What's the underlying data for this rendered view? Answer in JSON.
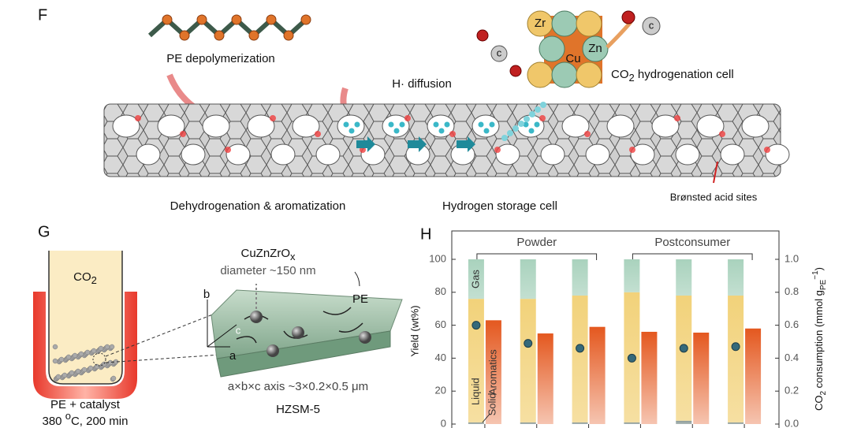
{
  "panel_f": {
    "label": "F",
    "pe_depolymerization": "PE depolymerization",
    "h_diffusion": "H· diffusion",
    "co2_cell": {
      "main": "CO",
      "sub": "2",
      "rest": " hydrogenation cell"
    },
    "atoms": [
      "Zr",
      "Zn",
      "Cu"
    ],
    "co_atom": "c",
    "dehydrogenation": "Dehydrogenation & aromatization",
    "storage": "Hydrogen storage cell",
    "bronsted": "Brønsted acid sites"
  },
  "panel_g": {
    "label": "G",
    "co2": {
      "main": "CO",
      "sub": "2"
    },
    "catalyst": {
      "main": "CuZnZrO",
      "sub": "x"
    },
    "diameter": "diameter ~150 nm",
    "pe": "PE",
    "axes": [
      "b",
      "c",
      "a"
    ],
    "dims": "a×b×c axis ~3×0.2×0.5 μm",
    "zeolite": "HZSM-5",
    "mix": "PE + catalyst",
    "conditions": {
      "pre": "380 ",
      "sup": "o",
      "post": "C, 200 min"
    }
  },
  "chart_data": {
    "type": "bar",
    "panel_label": "H",
    "categories": [
      null,
      null,
      null,
      null,
      null,
      null
    ],
    "groups": [
      "Powder",
      "Postconsumer"
    ],
    "ylabel": "Yield (wt%)",
    "y2label": {
      "main": "CO",
      "sub": "2",
      "mid": " consumption (mmol g",
      "sub2": "PE",
      "sup": "−1",
      "end": ")"
    },
    "series": [
      {
        "name": "Solid",
        "color": "#8a9a98",
        "stacked": true,
        "values": [
          1,
          1,
          1,
          1,
          2,
          1
        ]
      },
      {
        "name": "Liquid",
        "color": "#f2d27a",
        "stacked": true,
        "values": [
          75,
          75,
          77,
          79,
          76,
          77
        ]
      },
      {
        "name": "Gas",
        "color": "#a9d2bd",
        "stacked": true,
        "values": [
          24,
          24,
          22,
          20,
          22,
          22
        ]
      },
      {
        "name": "Aromatics",
        "color": "#e4581f",
        "values": [
          63,
          55,
          59,
          56,
          55.5,
          58
        ]
      },
      {
        "name": "CO2 consumption",
        "color": "#35697a",
        "type": "scatter",
        "axis": "y2",
        "values": [
          0.6,
          0.49,
          0.46,
          0.4,
          0.46,
          0.47
        ]
      }
    ],
    "ylim": [
      0,
      100
    ],
    "yticks": [
      0,
      20,
      40,
      60,
      80,
      100
    ],
    "y2lim": [
      0,
      1
    ],
    "y2ticks": [
      {
        "value": 0,
        "label": "0.0"
      },
      {
        "value": 0.2,
        "label": "0.2"
      },
      {
        "value": 0.4,
        "label": "0.4"
      },
      {
        "value": 0.6,
        "label": "0.6"
      },
      {
        "value": 0.8,
        "label": "0.8"
      },
      {
        "value": 1,
        "label": "1.0"
      }
    ]
  }
}
